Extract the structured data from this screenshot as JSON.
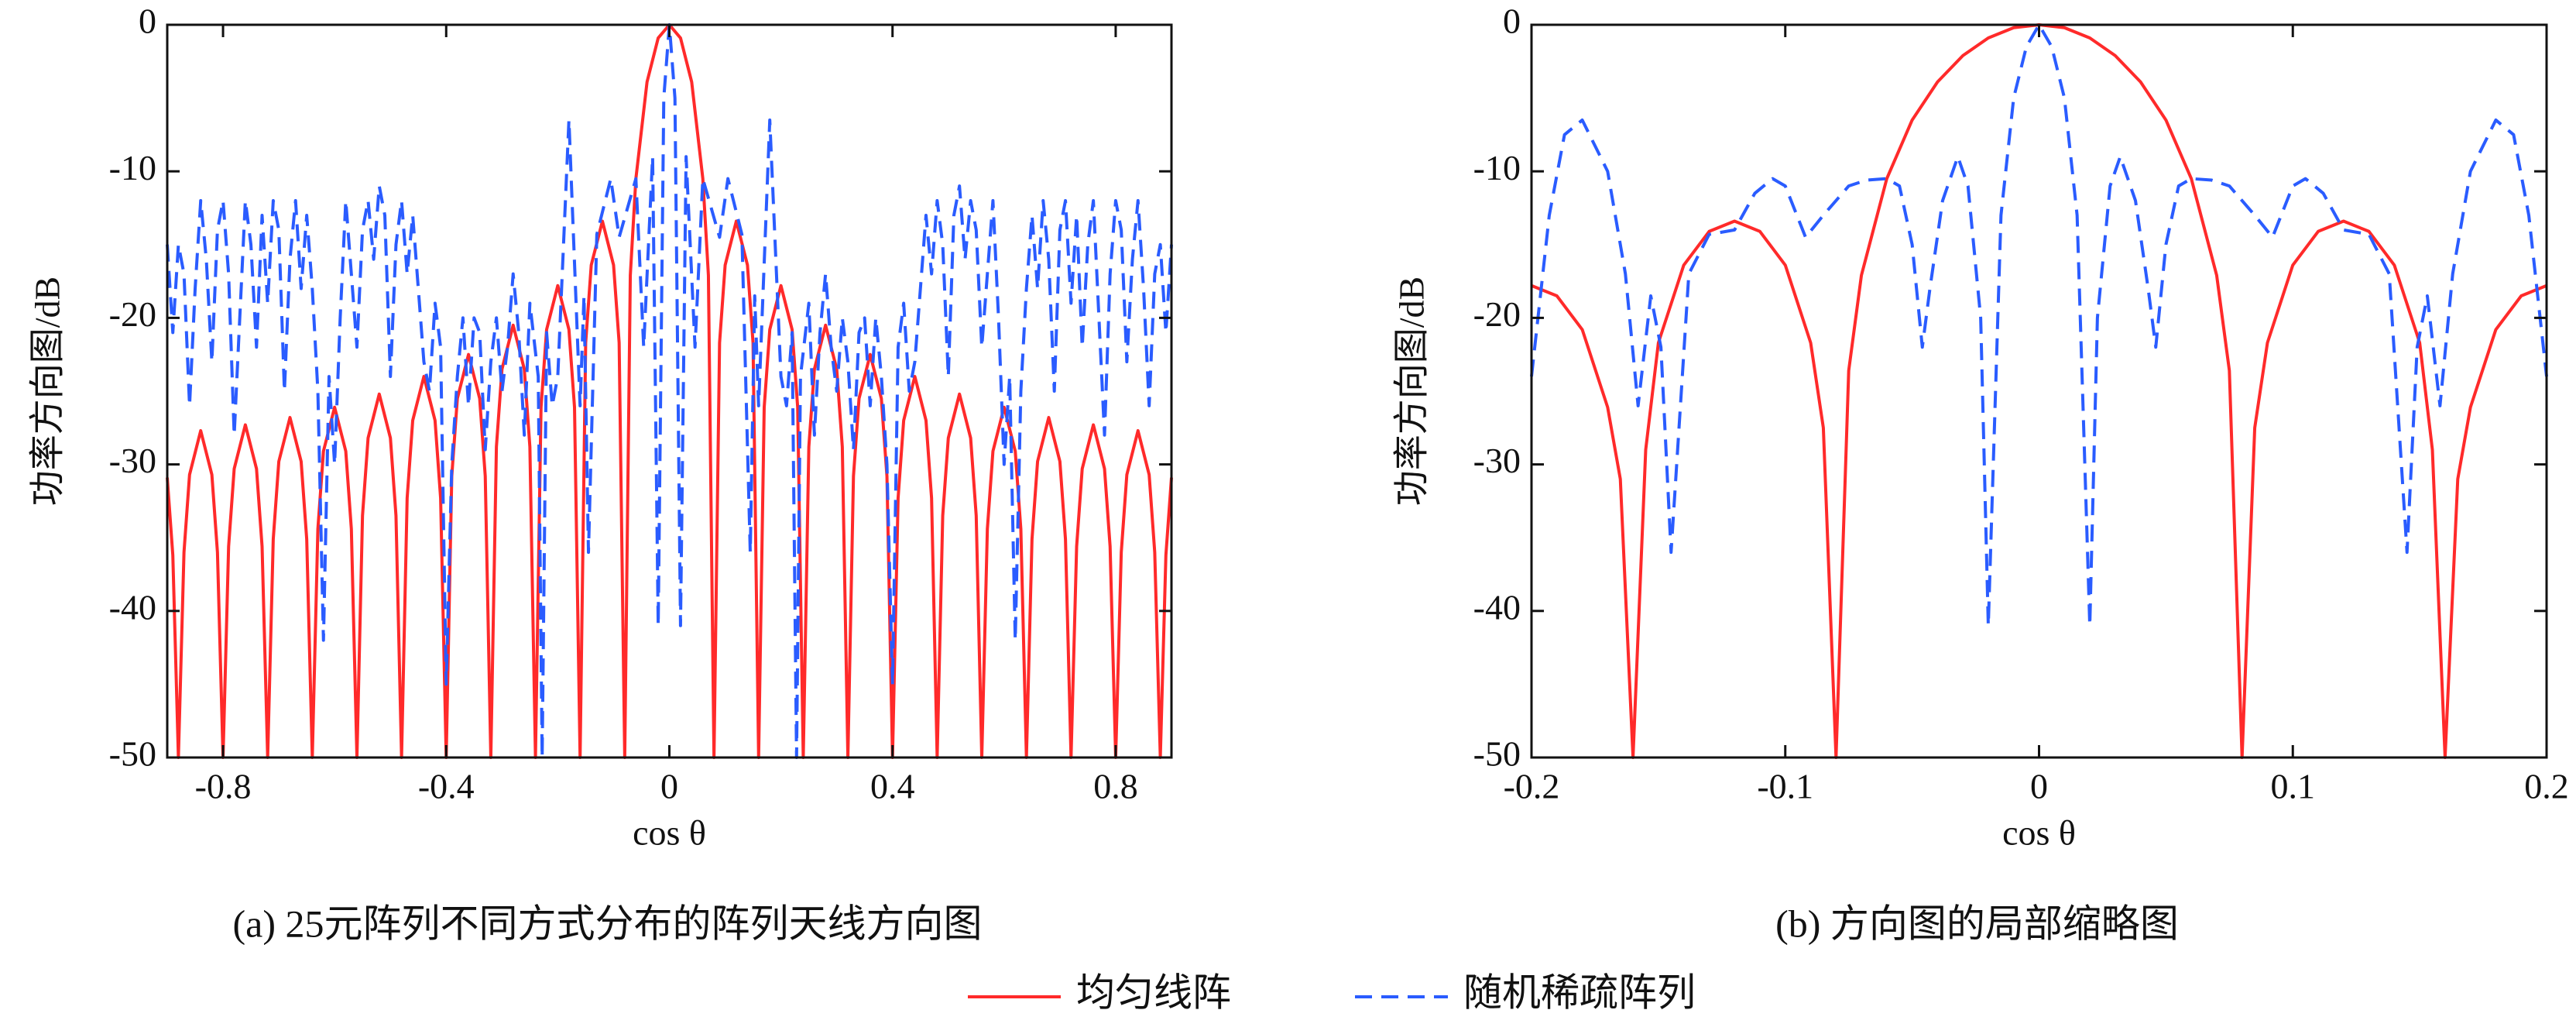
{
  "chart_data": [
    {
      "type": "line",
      "title": "(a) 25元阵列不同方式分布的阵列天线方向图",
      "xlabel": "cos θ",
      "ylabel": "功率方向图/dB",
      "xlim": [
        -0.9,
        0.9
      ],
      "xticks": [
        -0.8,
        -0.4,
        0,
        0.4,
        0.8
      ],
      "ylim": [
        -50,
        0
      ],
      "yticks": [
        0,
        -10,
        -20,
        -30,
        -40,
        -50
      ],
      "series": [
        {
          "name": "均匀线阵",
          "color": "#ff2a2a",
          "line_style": "solid",
          "x": [
            -0.9,
            -0.89,
            -0.88,
            -0.87,
            -0.86,
            -0.84,
            -0.82,
            -0.81,
            -0.8,
            -0.79,
            -0.78,
            -0.76,
            -0.74,
            -0.73,
            -0.72,
            -0.71,
            -0.7,
            -0.68,
            -0.66,
            -0.65,
            -0.64,
            -0.63,
            -0.62,
            -0.6,
            -0.58,
            -0.57,
            -0.56,
            -0.55,
            -0.54,
            -0.52,
            -0.5,
            -0.49,
            -0.48,
            -0.47,
            -0.46,
            -0.44,
            -0.42,
            -0.41,
            -0.4,
            -0.39,
            -0.38,
            -0.36,
            -0.34,
            -0.33,
            -0.32,
            -0.31,
            -0.3,
            -0.28,
            -0.26,
            -0.25,
            -0.24,
            -0.23,
            -0.22,
            -0.2,
            -0.18,
            -0.17,
            -0.16,
            -0.15,
            -0.14,
            -0.12,
            -0.1,
            -0.09,
            -0.08,
            -0.07,
            -0.06,
            -0.04,
            -0.02,
            0,
            0.02,
            0.04,
            0.06,
            0.07,
            0.08,
            0.09,
            0.1,
            0.12,
            0.14,
            0.15,
            0.16,
            0.17,
            0.18,
            0.2,
            0.22,
            0.23,
            0.24,
            0.25,
            0.26,
            0.28,
            0.3,
            0.31,
            0.32,
            0.33,
            0.34,
            0.36,
            0.38,
            0.39,
            0.4,
            0.41,
            0.42,
            0.44,
            0.46,
            0.47,
            0.48,
            0.49,
            0.5,
            0.52,
            0.54,
            0.55,
            0.56,
            0.57,
            0.58,
            0.6,
            0.62,
            0.63,
            0.64,
            0.65,
            0.66,
            0.68,
            0.7,
            0.71,
            0.72,
            0.73,
            0.74,
            0.76,
            0.78,
            0.79,
            0.8,
            0.81,
            0.82,
            0.84,
            0.86,
            0.87,
            0.88,
            0.89,
            0.9
          ],
          "values": [
            -30.9,
            -36.2,
            -50,
            -36.0,
            -30.7,
            -27.7,
            -30.7,
            -36.0,
            -50,
            -35.6,
            -30.3,
            -27.3,
            -30.3,
            -35.6,
            -50,
            -35.1,
            -29.8,
            -26.8,
            -29.8,
            -35.1,
            -50,
            -34.4,
            -29.1,
            -26.1,
            -29.1,
            -34.4,
            -50,
            -33.5,
            -28.2,
            -25.2,
            -28.2,
            -33.5,
            -50,
            -32.3,
            -27.0,
            -24.0,
            -27.0,
            -32.3,
            -50,
            -30.8,
            -25.5,
            -22.5,
            -25.5,
            -30.8,
            -50,
            -28.8,
            -23.5,
            -20.5,
            -23.5,
            -28.8,
            -50,
            -26.1,
            -20.8,
            -17.8,
            -20.8,
            -26.1,
            -50,
            -21.7,
            -16.4,
            -13.4,
            -16.4,
            -21.7,
            -50,
            -17.1,
            -10.5,
            -3.9,
            -0.9,
            0,
            -0.9,
            -3.9,
            -10.5,
            -17.1,
            -50,
            -21.7,
            -16.4,
            -13.4,
            -16.4,
            -21.7,
            -50,
            -26.1,
            -20.8,
            -17.8,
            -20.8,
            -26.1,
            -50,
            -28.8,
            -23.5,
            -20.5,
            -23.5,
            -28.8,
            -50,
            -30.8,
            -25.5,
            -22.5,
            -25.5,
            -30.8,
            -50,
            -32.3,
            -27.0,
            -24.0,
            -27.0,
            -32.3,
            -50,
            -33.5,
            -28.2,
            -25.2,
            -28.2,
            -33.5,
            -50,
            -34.4,
            -29.1,
            -26.1,
            -29.1,
            -34.4,
            -50,
            -35.1,
            -29.8,
            -26.8,
            -29.8,
            -35.1,
            -50,
            -35.6,
            -30.3,
            -27.3,
            -30.3,
            -35.6,
            -50,
            -36.0,
            -30.7,
            -27.7,
            -30.7,
            -36.0,
            -50,
            -36.2,
            -30.9
          ]
        },
        {
          "name": "随机稀疏阵列",
          "color": "#2a5cff",
          "line_style": "dashed",
          "x": [
            -0.9,
            -0.89,
            -0.88,
            -0.87,
            -0.86,
            -0.85,
            -0.84,
            -0.83,
            -0.82,
            -0.81,
            -0.8,
            -0.79,
            -0.78,
            -0.77,
            -0.76,
            -0.75,
            -0.74,
            -0.73,
            -0.72,
            -0.71,
            -0.7,
            -0.69,
            -0.68,
            -0.67,
            -0.66,
            -0.65,
            -0.64,
            -0.63,
            -0.62,
            -0.61,
            -0.6,
            -0.59,
            -0.58,
            -0.57,
            -0.56,
            -0.55,
            -0.54,
            -0.53,
            -0.52,
            -0.51,
            -0.5,
            -0.49,
            -0.48,
            -0.47,
            -0.46,
            -0.45,
            -0.44,
            -0.43,
            -0.42,
            -0.41,
            -0.4,
            -0.39,
            -0.38,
            -0.37,
            -0.36,
            -0.35,
            -0.34,
            -0.33,
            -0.32,
            -0.31,
            -0.3,
            -0.29,
            -0.28,
            -0.27,
            -0.26,
            -0.25,
            -0.235,
            -0.228,
            -0.22,
            -0.21,
            -0.2,
            -0.18,
            -0.16,
            -0.153,
            -0.145,
            -0.13,
            -0.105,
            -0.09,
            -0.06,
            -0.046,
            -0.03,
            -0.02,
            -0.01,
            0,
            0.01,
            0.02,
            0.03,
            0.046,
            0.06,
            0.09,
            0.105,
            0.13,
            0.145,
            0.153,
            0.16,
            0.18,
            0.2,
            0.21,
            0.22,
            0.228,
            0.235,
            0.25,
            0.26,
            0.27,
            0.28,
            0.29,
            0.3,
            0.31,
            0.32,
            0.33,
            0.34,
            0.35,
            0.36,
            0.37,
            0.38,
            0.39,
            0.4,
            0.41,
            0.42,
            0.43,
            0.44,
            0.45,
            0.46,
            0.47,
            0.48,
            0.49,
            0.5,
            0.51,
            0.52,
            0.53,
            0.54,
            0.55,
            0.56,
            0.57,
            0.58,
            0.59,
            0.6,
            0.61,
            0.62,
            0.63,
            0.64,
            0.65,
            0.66,
            0.67,
            0.68,
            0.69,
            0.7,
            0.71,
            0.72,
            0.73,
            0.74,
            0.75,
            0.76,
            0.77,
            0.78,
            0.79,
            0.8,
            0.81,
            0.82,
            0.83,
            0.84,
            0.85,
            0.86,
            0.87,
            0.88,
            0.89,
            0.9
          ],
          "values": [
            -15,
            -21,
            -15,
            -17,
            -26,
            -18,
            -12,
            -16,
            -23,
            -14,
            -12,
            -17,
            -28,
            -20,
            -12,
            -15,
            -22,
            -13,
            -19,
            -12,
            -14,
            -25,
            -16,
            -12,
            -18,
            -13,
            -18,
            -25,
            -42,
            -24,
            -30,
            -20,
            -12,
            -17,
            -22,
            -14,
            -12,
            -16,
            -11,
            -13,
            -24,
            -15,
            -12,
            -17,
            -13,
            -18,
            -23,
            -25,
            -19,
            -22,
            -45,
            -30,
            -24,
            -20,
            -26,
            -20,
            -21,
            -29,
            -23,
            -20,
            -25,
            -22,
            -17,
            -21,
            -28,
            -19,
            -24,
            -50,
            -21,
            -26,
            -24,
            -6.5,
            -26,
            -18.5,
            -36,
            -14.3,
            -10.5,
            -14.5,
            -10.5,
            -22,
            -9,
            -41,
            -5,
            0,
            -5,
            -41,
            -9,
            -22,
            -10.5,
            -14.5,
            -10.5,
            -14.3,
            -36,
            -18.5,
            -26,
            -6.5,
            -24,
            -26,
            -21,
            -50,
            -24,
            -19,
            -28,
            -21,
            -17,
            -22,
            -25,
            -20,
            -23,
            -29,
            -21,
            -20,
            -26,
            -20,
            -24,
            -30,
            -45,
            -22,
            -19,
            -25,
            -23,
            -18,
            -13,
            -17,
            -12,
            -15,
            -24,
            -13,
            -11,
            -16,
            -12,
            -14,
            -22,
            -17,
            -12,
            -20,
            -30,
            -24,
            -42,
            -25,
            -18,
            -13,
            -18,
            -12,
            -16,
            -25,
            -14,
            -12,
            -19,
            -13,
            -22,
            -15,
            -12,
            -20,
            -28,
            -17,
            -12,
            -14,
            -23,
            -16,
            -12,
            -18,
            -26,
            -17,
            -15,
            -21,
            -15
          ]
        }
      ]
    },
    {
      "type": "line",
      "title": "(b) 方向图的局部缩略图",
      "xlabel": "cos θ",
      "ylabel": "功率方向图/dB",
      "xlim": [
        -0.2,
        0.2
      ],
      "xticks": [
        -0.2,
        -0.1,
        0,
        0.1,
        0.2
      ],
      "ylim": [
        -50,
        0
      ],
      "yticks": [
        0,
        -10,
        -20,
        -30,
        -40,
        -50
      ],
      "series": [
        {
          "color": "#ff2a2a",
          "line_style": "solid",
          "x": [
            -0.2,
            -0.19,
            -0.18,
            -0.17,
            -0.165,
            -0.16,
            -0.155,
            -0.15,
            -0.14,
            -0.13,
            -0.12,
            -0.11,
            -0.1,
            -0.09,
            -0.085,
            -0.08,
            -0.075,
            -0.07,
            -0.06,
            -0.05,
            -0.04,
            -0.03,
            -0.02,
            -0.01,
            0,
            0.01,
            0.02,
            0.03,
            0.04,
            0.05,
            0.06,
            0.07,
            0.075,
            0.08,
            0.085,
            0.09,
            0.1,
            0.11,
            0.12,
            0.13,
            0.14,
            0.15,
            0.155,
            0.16,
            0.165,
            0.17,
            0.18,
            0.19,
            0.2
          ],
          "values": [
            -17.8,
            -18.5,
            -20.8,
            -26.1,
            -31,
            -50,
            -29,
            -21.7,
            -16.4,
            -14.1,
            -13.4,
            -14.1,
            -16.4,
            -21.7,
            -27.5,
            -50,
            -23.6,
            -17.1,
            -10.5,
            -6.5,
            -3.9,
            -2.1,
            -0.9,
            -0.2,
            0,
            -0.2,
            -0.9,
            -2.1,
            -3.9,
            -6.5,
            -10.5,
            -17.1,
            -23.6,
            -50,
            -27.5,
            -21.7,
            -16.4,
            -14.1,
            -13.4,
            -14.1,
            -16.4,
            -21.7,
            -29,
            -50,
            -31,
            -26.1,
            -20.8,
            -18.5,
            -17.8
          ]
        },
        {
          "color": "#2a5cff",
          "line_style": "dashed",
          "x": [
            -0.2,
            -0.193,
            -0.187,
            -0.18,
            -0.17,
            -0.163,
            -0.158,
            -0.153,
            -0.149,
            -0.145,
            -0.138,
            -0.13,
            -0.12,
            -0.112,
            -0.105,
            -0.1,
            -0.092,
            -0.085,
            -0.075,
            -0.068,
            -0.06,
            -0.055,
            -0.05,
            -0.046,
            -0.043,
            -0.038,
            -0.032,
            -0.028,
            -0.023,
            -0.02,
            -0.015,
            -0.01,
            -0.005,
            0,
            0.005,
            0.01,
            0.015,
            0.02,
            0.023,
            0.028,
            0.032,
            0.038,
            0.043,
            0.046,
            0.05,
            0.055,
            0.06,
            0.068,
            0.075,
            0.085,
            0.092,
            0.1,
            0.105,
            0.112,
            0.12,
            0.13,
            0.138,
            0.145,
            0.149,
            0.153,
            0.158,
            0.163,
            0.17,
            0.18,
            0.187,
            0.193,
            0.2
          ],
          "values": [
            -24,
            -13,
            -7.5,
            -6.5,
            -10,
            -17,
            -26,
            -18.5,
            -22,
            -36,
            -17,
            -14.3,
            -14,
            -11.5,
            -10.5,
            -11,
            -14.5,
            -13,
            -11,
            -10.6,
            -10.5,
            -11,
            -15,
            -22,
            -18,
            -12,
            -9,
            -11,
            -20,
            -41,
            -13,
            -5,
            -1.5,
            0,
            -1.5,
            -5,
            -13,
            -41,
            -20,
            -11,
            -9,
            -12,
            -18,
            -22,
            -15,
            -11,
            -10.5,
            -10.6,
            -11,
            -13,
            -14.5,
            -11,
            -10.5,
            -11.5,
            -14,
            -14.3,
            -17,
            -36,
            -22,
            -18.5,
            -26,
            -17,
            -10,
            -6.5,
            -7.5,
            -13,
            -24
          ]
        }
      ]
    }
  ]
}
